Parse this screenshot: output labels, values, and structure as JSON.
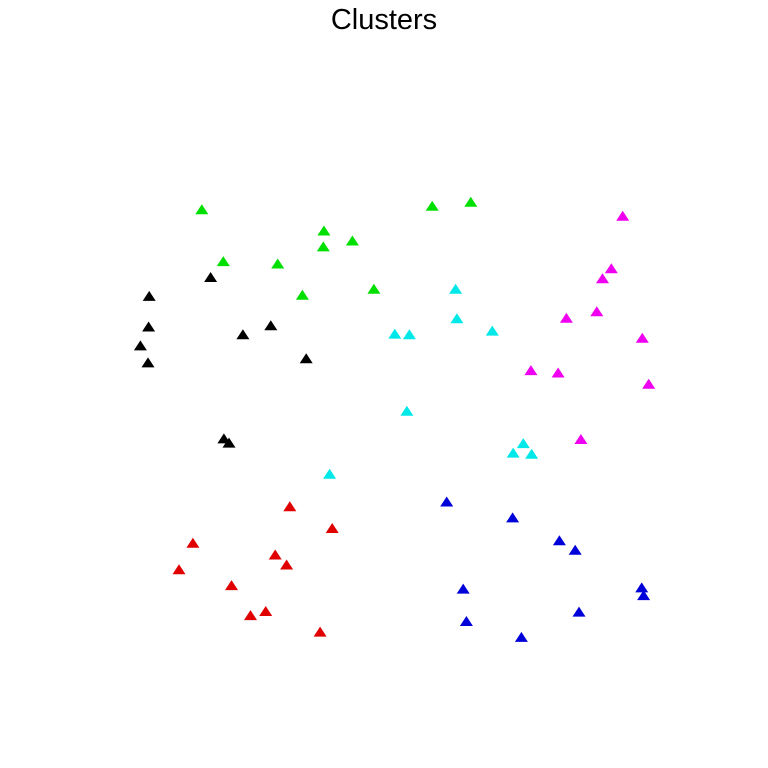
{
  "chart_data": {
    "type": "scatter",
    "title": "Clusters",
    "xlabel": "",
    "ylabel": "",
    "marker": "triangle",
    "axes_visible": false,
    "grid": false,
    "legend": "none",
    "xlim": [
      0,
      100
    ],
    "ylim": [
      0,
      100
    ],
    "series": [
      {
        "color": "#00e000",
        "points": [
          [
            20.5,
            82.8
          ],
          [
            56.9,
            83.4
          ],
          [
            63.0,
            84.1
          ],
          [
            39.8,
            79.2
          ],
          [
            44.3,
            77.5
          ],
          [
            39.7,
            76.5
          ],
          [
            23.9,
            74.0
          ],
          [
            32.5,
            73.6
          ],
          [
            47.7,
            69.3
          ],
          [
            36.4,
            68.3
          ]
        ]
      },
      {
        "color": "#000000",
        "points": [
          [
            21.9,
            71.3
          ],
          [
            12.2,
            68.1
          ],
          [
            12.1,
            62.9
          ],
          [
            31.4,
            63.1
          ],
          [
            27.0,
            61.6
          ],
          [
            10.8,
            59.7
          ],
          [
            37.0,
            57.5
          ],
          [
            12.0,
            56.8
          ],
          [
            24.0,
            43.9
          ],
          [
            24.8,
            43.2
          ]
        ]
      },
      {
        "color": "#00e8e8",
        "points": [
          [
            60.6,
            69.3
          ],
          [
            60.8,
            64.3
          ],
          [
            66.4,
            62.2
          ],
          [
            51.0,
            61.7
          ],
          [
            53.3,
            61.6
          ],
          [
            52.9,
            48.6
          ],
          [
            71.3,
            43.1
          ],
          [
            69.7,
            41.5
          ],
          [
            72.6,
            41.3
          ],
          [
            40.7,
            37.9
          ]
        ]
      },
      {
        "color": "#f000f0",
        "points": [
          [
            87.0,
            81.7
          ],
          [
            85.2,
            72.8
          ],
          [
            83.8,
            71.1
          ],
          [
            82.9,
            65.5
          ],
          [
            78.1,
            64.4
          ],
          [
            90.1,
            61.0
          ],
          [
            72.5,
            55.5
          ],
          [
            76.8,
            55.1
          ],
          [
            91.1,
            53.2
          ],
          [
            80.4,
            43.8
          ]
        ]
      },
      {
        "color": "#e00000",
        "points": [
          [
            34.4,
            32.4
          ],
          [
            41.1,
            28.7
          ],
          [
            19.1,
            26.2
          ],
          [
            32.1,
            24.2
          ],
          [
            33.9,
            22.5
          ],
          [
            16.9,
            21.7
          ],
          [
            25.2,
            19.0
          ],
          [
            30.6,
            14.6
          ],
          [
            28.2,
            13.9
          ],
          [
            39.2,
            11.1
          ]
        ]
      },
      {
        "color": "#0000d8",
        "points": [
          [
            59.2,
            33.2
          ],
          [
            69.6,
            30.5
          ],
          [
            77.0,
            26.6
          ],
          [
            79.5,
            25.0
          ],
          [
            61.8,
            18.4
          ],
          [
            90.0,
            18.6
          ],
          [
            90.3,
            17.3
          ],
          [
            80.1,
            14.5
          ],
          [
            62.3,
            12.9
          ],
          [
            71.0,
            10.2
          ]
        ]
      }
    ]
  }
}
